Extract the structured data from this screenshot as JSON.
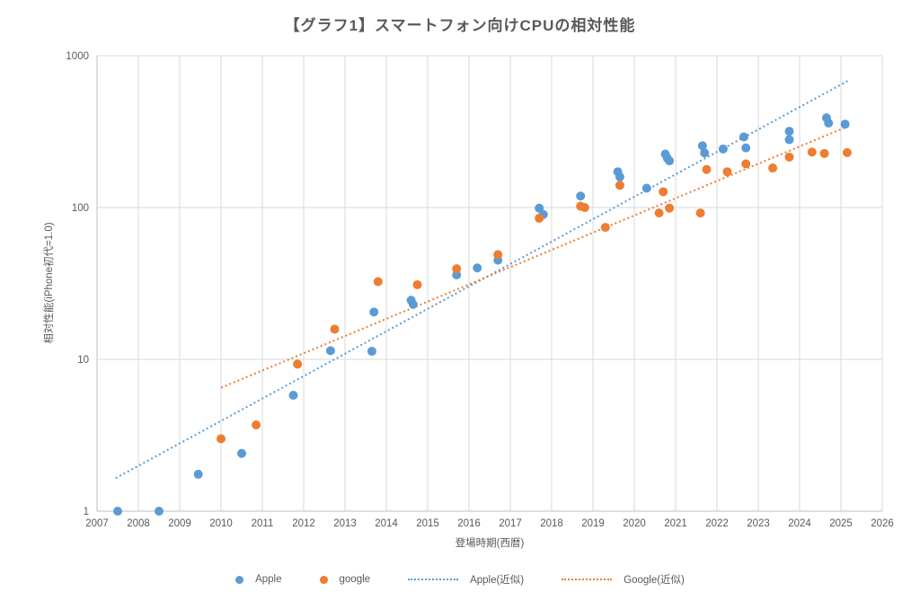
{
  "title": "【グラフ1】スマートフォン向けCPUの相対性能",
  "colors": {
    "apple": "#5B9BD5",
    "google": "#ED7D31",
    "apple_trend": "#5B9BD5",
    "google_trend": "#ED7D31",
    "grid": "#D9D9D9",
    "text": "#595959"
  },
  "legend": {
    "apple": "Apple",
    "google": "google",
    "apple_trend": "Apple(近似)",
    "google_trend": "Google(近似)"
  },
  "chart_data": {
    "type": "scatter",
    "title": "【グラフ1】スマートフォン向けCPUの相対性能",
    "xlabel": "登場時期(西暦)",
    "ylabel": "相対性能(iPhone初代=1.0)",
    "x_ticks": [
      2007,
      2008,
      2009,
      2010,
      2011,
      2012,
      2013,
      2014,
      2015,
      2016,
      2017,
      2018,
      2019,
      2020,
      2021,
      2022,
      2023,
      2024,
      2025,
      2026
    ],
    "y_ticks": [
      1,
      10,
      100,
      1000
    ],
    "y_scale": "log",
    "xlim": [
      2007,
      2026
    ],
    "ylim": [
      1,
      1000
    ],
    "grid": true,
    "legend_position": "bottom",
    "series": [
      {
        "name": "Apple",
        "color": "#5B9BD5",
        "points": [
          [
            2007.5,
            1.0
          ],
          [
            2008.5,
            1.0
          ],
          [
            2009.45,
            1.75
          ],
          [
            2010.5,
            2.4
          ],
          [
            2011.75,
            5.8
          ],
          [
            2012.65,
            11.4
          ],
          [
            2013.65,
            11.3
          ],
          [
            2013.7,
            20.5
          ],
          [
            2014.6,
            24.5
          ],
          [
            2014.65,
            23
          ],
          [
            2015.7,
            36
          ],
          [
            2016.2,
            40
          ],
          [
            2016.7,
            45
          ],
          [
            2017.7,
            99
          ],
          [
            2017.8,
            90
          ],
          [
            2018.7,
            119
          ],
          [
            2019.6,
            172
          ],
          [
            2019.65,
            159
          ],
          [
            2020.3,
            134
          ],
          [
            2020.75,
            225
          ],
          [
            2020.8,
            211
          ],
          [
            2020.85,
            203
          ],
          [
            2021.65,
            255
          ],
          [
            2021.7,
            229
          ],
          [
            2022.15,
            243
          ],
          [
            2022.65,
            292
          ],
          [
            2022.7,
            247
          ],
          [
            2023.75,
            318
          ],
          [
            2023.75,
            280
          ],
          [
            2024.65,
            390
          ],
          [
            2024.7,
            360
          ],
          [
            2025.1,
            354
          ]
        ]
      },
      {
        "name": "google",
        "color": "#ED7D31",
        "points": [
          [
            2010.0,
            3.0
          ],
          [
            2010.85,
            3.7
          ],
          [
            2011.85,
            9.3
          ],
          [
            2012.75,
            15.8
          ],
          [
            2013.8,
            32.5
          ],
          [
            2014.75,
            31
          ],
          [
            2015.7,
            39.5
          ],
          [
            2016.7,
            49
          ],
          [
            2017.7,
            85
          ],
          [
            2018.7,
            102
          ],
          [
            2018.8,
            100
          ],
          [
            2019.3,
            74
          ],
          [
            2019.65,
            140
          ],
          [
            2020.6,
            92
          ],
          [
            2020.7,
            127
          ],
          [
            2020.85,
            99
          ],
          [
            2021.6,
            92
          ],
          [
            2021.75,
            178
          ],
          [
            2022.25,
            172
          ],
          [
            2022.7,
            194
          ],
          [
            2023.35,
            182
          ],
          [
            2023.75,
            215
          ],
          [
            2024.3,
            232
          ],
          [
            2024.6,
            227
          ],
          [
            2025.15,
            230
          ]
        ]
      }
    ],
    "trendlines": [
      {
        "name": "Apple(近似)",
        "color": "#5B9BD5",
        "style": "dotted",
        "from": [
          2007.45,
          1.65
        ],
        "to": [
          2025.2,
          690
        ]
      },
      {
        "name": "Google(近似)",
        "color": "#ED7D31",
        "style": "dotted",
        "from": [
          2010.0,
          6.5
        ],
        "to": [
          2025.2,
          345
        ]
      }
    ]
  }
}
